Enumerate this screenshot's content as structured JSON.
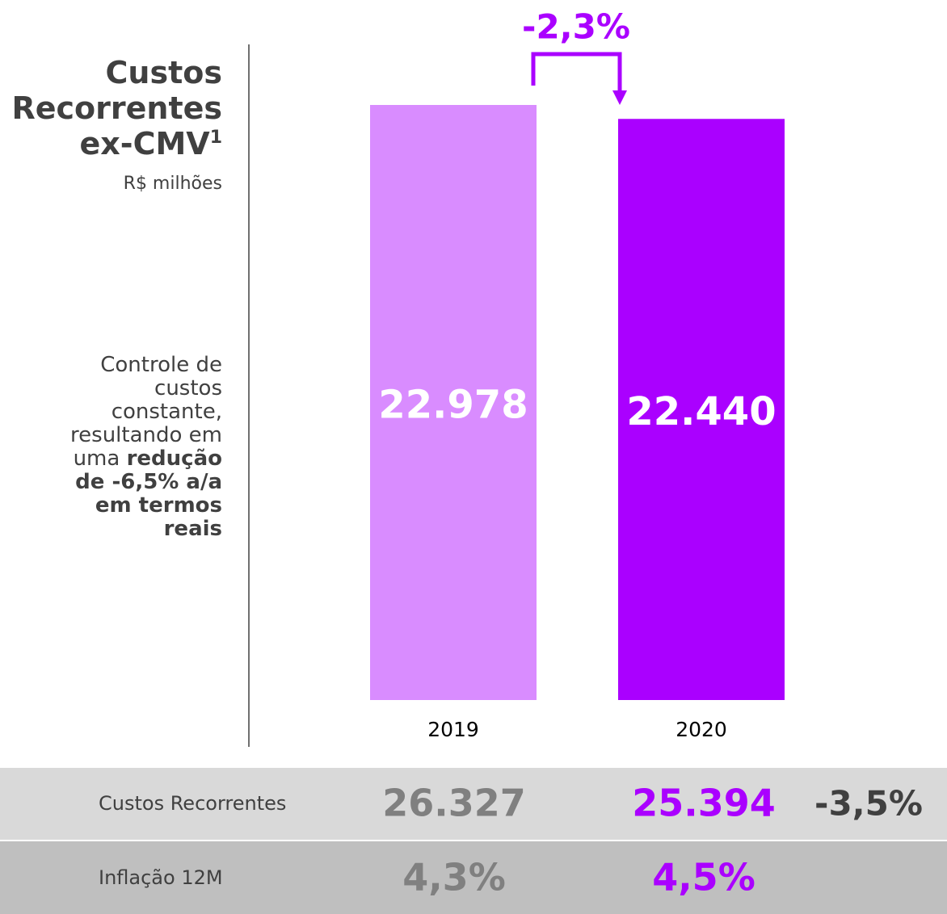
{
  "chart_data": {
    "type": "bar",
    "title": "Custos Recorrentes ex-CMV",
    "title_note": "1",
    "subtitle": "R$ milhões",
    "annotation": [
      {
        "text": "Controle de custos constante, resultando em uma ",
        "bold": false
      },
      {
        "text": "redução de -6,5% a/a em termos reais",
        "bold": true
      }
    ],
    "categories": [
      "2019",
      "2020"
    ],
    "values": [
      22978,
      22440
    ],
    "value_labels": [
      "22.978",
      "22.440"
    ],
    "colors": [
      "#d98cff",
      "#aa00ff"
    ],
    "change_label": "-2,3%",
    "table": {
      "rows": [
        {
          "label": "Custos Recorrentes",
          "values": [
            "26.327",
            "25.394"
          ],
          "change": "-3,5%"
        },
        {
          "label": "Inflação 12M",
          "values": [
            "4,3%",
            "4,5%"
          ]
        }
      ]
    }
  }
}
